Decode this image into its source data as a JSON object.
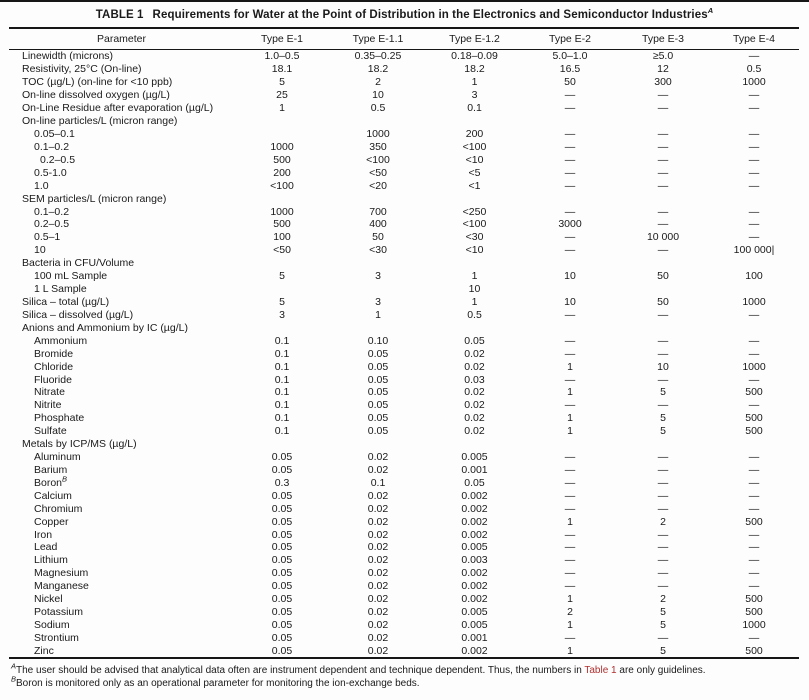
{
  "title": {
    "label": "TABLE 1",
    "text": "Requirements for Water at the Point of Distribution in the Electronics and Semiconductor Industries",
    "superscript": "A"
  },
  "colors": {
    "text": "#1a1a1a",
    "link_red": "#b03030",
    "rule": "#161616",
    "background": "#fdfdfd"
  },
  "table": {
    "columns": [
      "Parameter",
      "Type E-1",
      "Type E-1.1",
      "Type E-1.2",
      "Type E-2",
      "Type E-3",
      "Type E-4"
    ],
    "rows": [
      {
        "label": "Linewidth (microns)",
        "indent": 0,
        "values": [
          "1.0–0.5",
          "0.35–0.25",
          "0.18–0.09",
          "5.0–1.0",
          "≥5.0",
          "—"
        ]
      },
      {
        "label": "Resistivity, 25°C (On-line)",
        "indent": 0,
        "values": [
          "18.1",
          "18.2",
          "18.2",
          "16.5",
          "12",
          "0.5"
        ]
      },
      {
        "label": "TOC (µg/L) (on-line for <10 ppb)",
        "indent": 0,
        "values": [
          "5",
          "2",
          "1",
          "50",
          "300",
          "1000"
        ]
      },
      {
        "label": "On-line dissolved oxygen (µg/L)",
        "indent": 0,
        "values": [
          "25",
          "10",
          "3",
          "—",
          "—",
          "—"
        ]
      },
      {
        "label": "On-Line Residue after evaporation (µg/L)",
        "indent": 0,
        "values": [
          "1",
          "0.5",
          "0.1",
          "—",
          "—",
          "—"
        ]
      },
      {
        "label": "On-line particles/L (micron range)",
        "indent": 0,
        "values": [
          "",
          "",
          "",
          "",
          "",
          ""
        ]
      },
      {
        "label": "0.05–0.1",
        "indent": 1,
        "values": [
          "",
          "1000",
          "200",
          "—",
          "—",
          "—"
        ]
      },
      {
        "label": "0.1–0.2",
        "indent": 1,
        "values": [
          "1000",
          "350",
          "<100",
          "—",
          "—",
          "—"
        ]
      },
      {
        "label": "0.2–0.5",
        "indent": 2,
        "values": [
          "500",
          "<100",
          "<10",
          "—",
          "—",
          "—"
        ]
      },
      {
        "label": "0.5-1.0",
        "indent": 1,
        "values": [
          "200",
          "<50",
          "<5",
          "—",
          "—",
          "—"
        ]
      },
      {
        "label": "1.0",
        "indent": 1,
        "values": [
          "<100",
          "<20",
          "<1",
          "—",
          "—",
          "—"
        ]
      },
      {
        "label": "SEM particles/L (micron range)",
        "indent": 0,
        "values": [
          "",
          "",
          "",
          "",
          "",
          ""
        ]
      },
      {
        "label": "0.1–0.2",
        "indent": 1,
        "values": [
          "1000",
          "700",
          "<250",
          "—",
          "—",
          "—"
        ]
      },
      {
        "label": "0.2–0.5",
        "indent": 1,
        "values": [
          "500",
          "400",
          "<100",
          "3000",
          "—",
          "—"
        ]
      },
      {
        "label": "0.5–1",
        "indent": 1,
        "values": [
          "100",
          "50",
          "<30",
          "—",
          "10 000",
          "—"
        ]
      },
      {
        "label": "10",
        "indent": 1,
        "values": [
          "<50",
          "<30",
          "<10",
          "—",
          "—",
          "100 000|"
        ]
      },
      {
        "label": "Bacteria in CFU/Volume",
        "indent": 0,
        "values": [
          "",
          "",
          "",
          "",
          "",
          ""
        ]
      },
      {
        "label": "100 mL Sample",
        "indent": 1,
        "values": [
          "5",
          "3",
          "1",
          "10",
          "50",
          "100"
        ]
      },
      {
        "label": "1 L Sample",
        "indent": 1,
        "values": [
          "",
          "",
          "10",
          "",
          "",
          ""
        ]
      },
      {
        "label": "Silica – total (µg/L)",
        "indent": 0,
        "values": [
          "5",
          "3",
          "1",
          "10",
          "50",
          "1000"
        ]
      },
      {
        "label": "Silica – dissolved (µg/L)",
        "indent": 0,
        "values": [
          "3",
          "1",
          "0.5",
          "—",
          "—",
          "—"
        ]
      },
      {
        "label": "Anions and Ammonium by IC (µg/L)",
        "indent": 0,
        "values": [
          "",
          "",
          "",
          "",
          "",
          ""
        ]
      },
      {
        "label": "Ammonium",
        "indent": 1,
        "values": [
          "0.1",
          "0.10",
          "0.05",
          "—",
          "—",
          "—"
        ]
      },
      {
        "label": "Bromide",
        "indent": 1,
        "values": [
          "0.1",
          "0.05",
          "0.02",
          "—",
          "—",
          "—"
        ]
      },
      {
        "label": "Chloride",
        "indent": 1,
        "values": [
          "0.1",
          "0.05",
          "0.02",
          "1",
          "10",
          "1000"
        ]
      },
      {
        "label": "Fluoride",
        "indent": 1,
        "values": [
          "0.1",
          "0.05",
          "0.03",
          "—",
          "—",
          "—"
        ]
      },
      {
        "label": "Nitrate",
        "indent": 1,
        "values": [
          "0.1",
          "0.05",
          "0.02",
          "1",
          "5",
          "500"
        ]
      },
      {
        "label": "Nitrite",
        "indent": 1,
        "values": [
          "0.1",
          "0.05",
          "0.02",
          "—",
          "—",
          "—"
        ]
      },
      {
        "label": "Phosphate",
        "indent": 1,
        "values": [
          "0.1",
          "0.05",
          "0.02",
          "1",
          "5",
          "500"
        ]
      },
      {
        "label": "Sulfate",
        "indent": 1,
        "values": [
          "0.1",
          "0.05",
          "0.02",
          "1",
          "5",
          "500"
        ]
      },
      {
        "label": "Metals by ICP/MS (µg/L)",
        "indent": 0,
        "values": [
          "",
          "",
          "",
          "",
          "",
          ""
        ]
      },
      {
        "label": "Aluminum",
        "indent": 1,
        "values": [
          "0.05",
          "0.02",
          "0.005",
          "—",
          "—",
          "—"
        ]
      },
      {
        "label": "Barium",
        "indent": 1,
        "values": [
          "0.05",
          "0.02",
          "0.001",
          "—",
          "—",
          "—"
        ]
      },
      {
        "label": "Boron",
        "sup": "B",
        "indent": 1,
        "values": [
          "0.3",
          "0.1",
          "0.05",
          "—",
          "—",
          "—"
        ]
      },
      {
        "label": "Calcium",
        "indent": 1,
        "values": [
          "0.05",
          "0.02",
          "0.002",
          "—",
          "—",
          "—"
        ]
      },
      {
        "label": "Chromium",
        "indent": 1,
        "values": [
          "0.05",
          "0.02",
          "0.002",
          "—",
          "—",
          "—"
        ]
      },
      {
        "label": "Copper",
        "indent": 1,
        "values": [
          "0.05",
          "0.02",
          "0.002",
          "1",
          "2",
          "500"
        ]
      },
      {
        "label": "Iron",
        "indent": 1,
        "values": [
          "0.05",
          "0.02",
          "0.002",
          "—",
          "—",
          "—"
        ]
      },
      {
        "label": "Lead",
        "indent": 1,
        "values": [
          "0.05",
          "0.02",
          "0.005",
          "—",
          "—",
          "—"
        ]
      },
      {
        "label": "Lithium",
        "indent": 1,
        "values": [
          "0.05",
          "0.02",
          "0.003",
          "—",
          "—",
          "—"
        ]
      },
      {
        "label": "Magnesium",
        "indent": 1,
        "values": [
          "0.05",
          "0.02",
          "0.002",
          "—",
          "—",
          "—"
        ]
      },
      {
        "label": "Manganese",
        "indent": 1,
        "values": [
          "0.05",
          "0.02",
          "0.002",
          "—",
          "—",
          "—"
        ]
      },
      {
        "label": "Nickel",
        "indent": 1,
        "values": [
          "0.05",
          "0.02",
          "0.002",
          "1",
          "2",
          "500"
        ]
      },
      {
        "label": "Potassium",
        "indent": 1,
        "values": [
          "0.05",
          "0.02",
          "0.005",
          "2",
          "5",
          "500"
        ]
      },
      {
        "label": "Sodium",
        "indent": 1,
        "values": [
          "0.05",
          "0.02",
          "0.005",
          "1",
          "5",
          "1000"
        ]
      },
      {
        "label": "Strontium",
        "indent": 1,
        "values": [
          "0.05",
          "0.02",
          "0.001",
          "—",
          "—",
          "—"
        ]
      },
      {
        "label": "Zinc",
        "indent": 1,
        "values": [
          "0.05",
          "0.02",
          "0.002",
          "1",
          "5",
          "500"
        ]
      }
    ]
  },
  "footnotes": [
    {
      "sup": "A",
      "text_before_link": "The user should be advised that analytical data often are instrument dependent and technique dependent. Thus, the numbers in ",
      "link": "Table 1",
      "text_after_link": " are only guidelines."
    },
    {
      "sup": "B",
      "text": "Boron is monitored only as an operational parameter for monitoring the ion-exchange beds."
    }
  ]
}
